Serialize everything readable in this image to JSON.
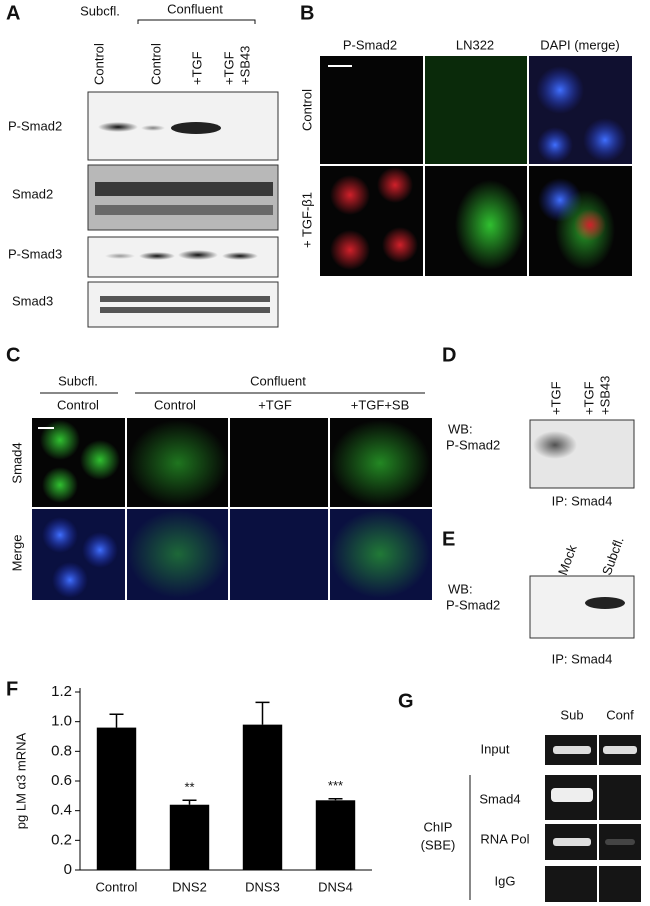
{
  "panels": {
    "A": {
      "label": "A",
      "groups": [
        "Subcfl.",
        "Confluent"
      ],
      "columns": [
        "Control",
        "Control",
        "+TGF",
        "+TGF",
        "+SB43"
      ],
      "rows": [
        "P-Smad2",
        "Smad2",
        "P-Smad3",
        "Smad3"
      ]
    },
    "B": {
      "label": "B",
      "columns": [
        "P-Smad2",
        "LN322",
        "DAPI (merge)"
      ],
      "rows": [
        "Control",
        "+ TGF-β1"
      ]
    },
    "C": {
      "label": "C",
      "groups": [
        "Subcfl.",
        "Confluent"
      ],
      "columns": [
        "Control",
        "Control",
        "+TGF",
        "+TGF+SB"
      ],
      "rows": [
        "Smad4",
        "Merge"
      ]
    },
    "D": {
      "label": "D",
      "columns": [
        "+TGF",
        "+TGF",
        "+SB43"
      ],
      "blot": [
        "WB:",
        "P-Smad2"
      ],
      "ip": "IP: Smad4"
    },
    "E": {
      "label": "E",
      "columns": [
        "Mock",
        "Subcfl."
      ],
      "blot": [
        "WB:",
        "P-Smad2"
      ],
      "ip": "IP: Smad4"
    },
    "G": {
      "label": "G",
      "columns": [
        "Sub",
        "Conf"
      ],
      "rows": [
        "Input",
        "Smad4",
        "RNA Pol",
        "IgG"
      ],
      "group": [
        "ChIP",
        "(SBE)"
      ]
    }
  },
  "chart_data": {
    "type": "bar",
    "label": "F",
    "y_label": "pg LM α3 mRNA",
    "categories": [
      "Control",
      "DNS2",
      "DNS3",
      "DNS4"
    ],
    "values": [
      0.96,
      0.44,
      0.98,
      0.47
    ],
    "errors": [
      0.09,
      0.03,
      0.15,
      0.01
    ],
    "annotations": [
      null,
      "**",
      null,
      "***"
    ],
    "color": "#000000",
    "ylim": [
      0,
      1.2
    ],
    "yticks": [
      0,
      0.2,
      0.4,
      0.6,
      0.8,
      {
        "value": 1,
        "label": "1.0"
      },
      1.2
    ]
  }
}
